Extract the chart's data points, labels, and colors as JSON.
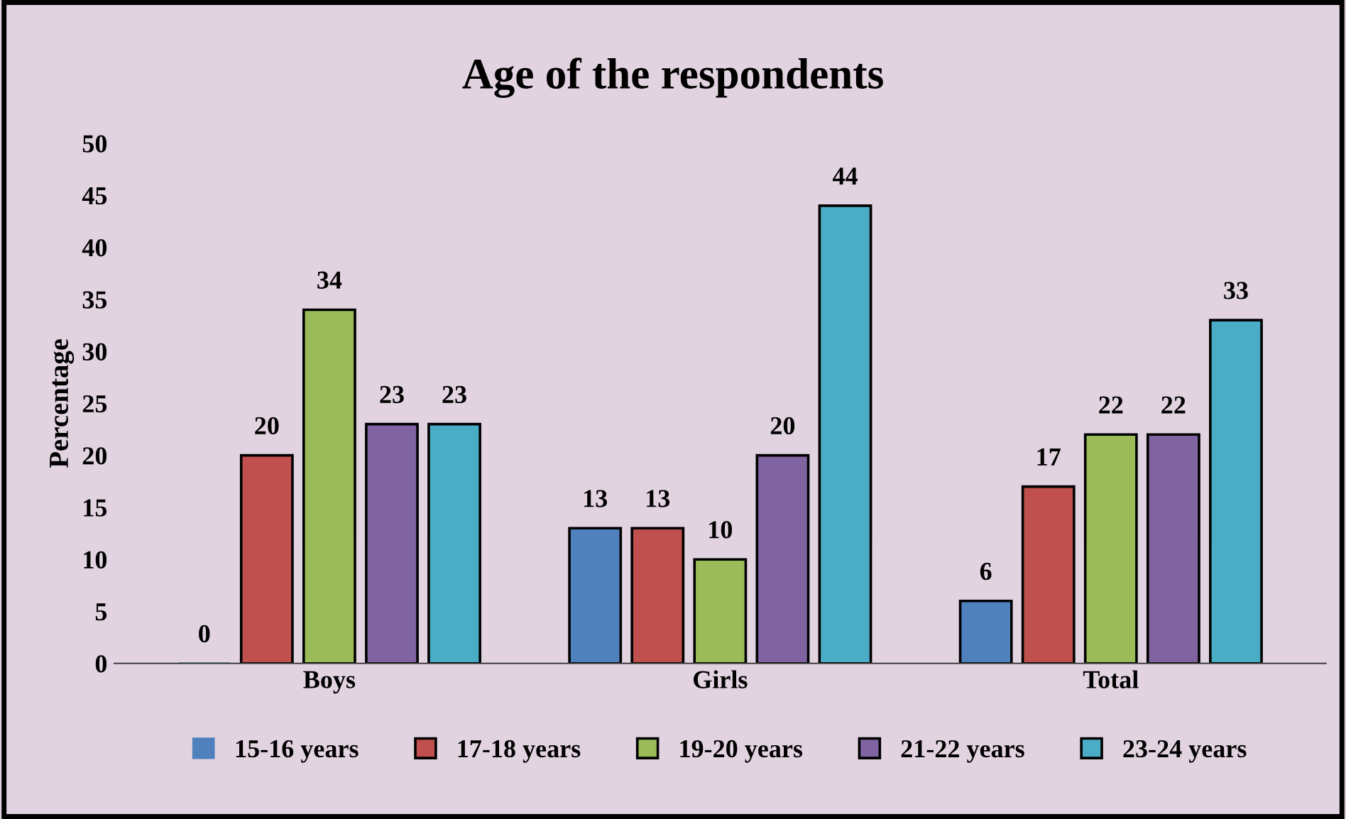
{
  "chart_data": {
    "type": "bar",
    "title": "Age of the respondents",
    "ylabel": "Percentage",
    "categories": [
      "Boys",
      "Girls",
      "Total"
    ],
    "series": [
      {
        "name": "15-16 years",
        "color": "#4f81bd",
        "values": [
          0,
          13,
          6
        ]
      },
      {
        "name": "17-18 years",
        "color": "#c0504d",
        "values": [
          20,
          13,
          17
        ]
      },
      {
        "name": "19-20 years",
        "color": "#9bbb59",
        "values": [
          34,
          10,
          22
        ]
      },
      {
        "name": "21-22 years",
        "color": "#8064a2",
        "values": [
          23,
          20,
          22
        ]
      },
      {
        "name": "23-24 years",
        "color": "#4bacc6",
        "values": [
          23,
          44,
          33
        ]
      }
    ],
    "ylim": [
      0,
      50
    ],
    "yticks": [
      0,
      5,
      10,
      15,
      20,
      25,
      30,
      35,
      40,
      45,
      50
    ],
    "grid": false,
    "legend": "bottom",
    "data_labels": true
  }
}
